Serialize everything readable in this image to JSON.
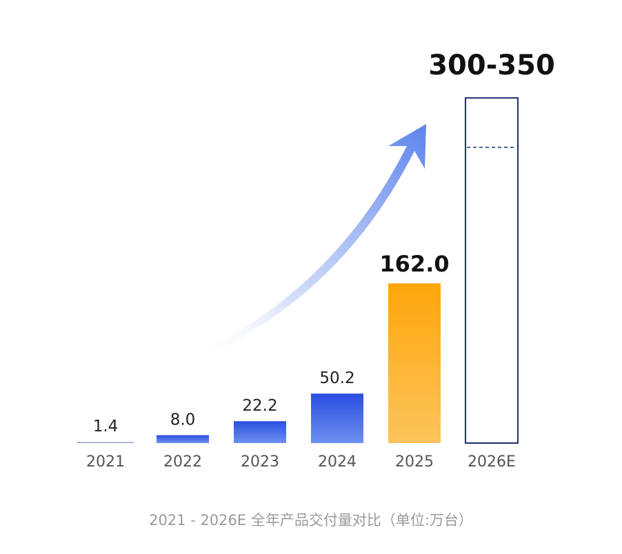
{
  "chart_data": {
    "type": "bar",
    "categories": [
      "2021",
      "2022",
      "2023",
      "2024",
      "2025",
      "2026E"
    ],
    "values": [
      1.4,
      8.0,
      22.2,
      50.2,
      162.0,
      null
    ],
    "value_labels": [
      "1.4",
      "8.0",
      "22.2",
      "50.2",
      "162.0",
      "300-350"
    ],
    "estimate_range": [
      300,
      350
    ],
    "caption": "2021 - 2026E 全年产品交付量对比（单位:万台）",
    "ylim": [
      0,
      355
    ],
    "grid": false,
    "legend": "none",
    "colors": {
      "actual_bar": "#2b4fe0",
      "actual_bar_light": "#6d8ff0",
      "highlight_bar": "#ffa50a",
      "highlight_bar_light": "#fbc45b",
      "estimate_outline": "#1e2f6e",
      "arrow": "#5b83ec",
      "baseline": "#8f9fc7"
    }
  }
}
